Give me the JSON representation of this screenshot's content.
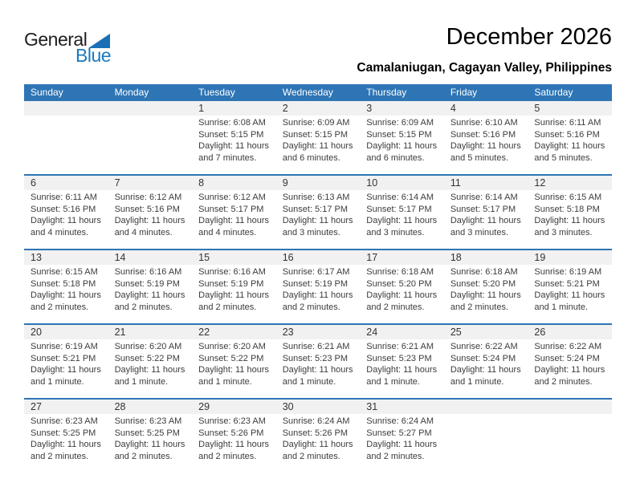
{
  "logo": {
    "word_top": "General",
    "word_bottom": "Blue"
  },
  "title": "December 2026",
  "location": "Camalaniugan, Cagayan Valley, Philippines",
  "colors": {
    "header_bg": "#2e75b5",
    "week_divider": "#2e75b5",
    "number_strip_bg": "#f1f1f1",
    "logo_blue": "#1b79c0",
    "header_text": "#ffffff"
  },
  "calendar": {
    "weekdays": [
      "Sunday",
      "Monday",
      "Tuesday",
      "Wednesday",
      "Thursday",
      "Friday",
      "Saturday"
    ],
    "field_labels": {
      "sunrise": "Sunrise:",
      "sunset": "Sunset:",
      "daylight": "Daylight:"
    },
    "weeks": [
      [
        {
          "day": ""
        },
        {
          "day": ""
        },
        {
          "day": "1",
          "sunrise": "6:08 AM",
          "sunset": "5:15 PM",
          "daylight": "11 hours and 7 minutes."
        },
        {
          "day": "2",
          "sunrise": "6:09 AM",
          "sunset": "5:15 PM",
          "daylight": "11 hours and 6 minutes."
        },
        {
          "day": "3",
          "sunrise": "6:09 AM",
          "sunset": "5:15 PM",
          "daylight": "11 hours and 6 minutes."
        },
        {
          "day": "4",
          "sunrise": "6:10 AM",
          "sunset": "5:16 PM",
          "daylight": "11 hours and 5 minutes."
        },
        {
          "day": "5",
          "sunrise": "6:11 AM",
          "sunset": "5:16 PM",
          "daylight": "11 hours and 5 minutes."
        }
      ],
      [
        {
          "day": "6",
          "sunrise": "6:11 AM",
          "sunset": "5:16 PM",
          "daylight": "11 hours and 4 minutes."
        },
        {
          "day": "7",
          "sunrise": "6:12 AM",
          "sunset": "5:16 PM",
          "daylight": "11 hours and 4 minutes."
        },
        {
          "day": "8",
          "sunrise": "6:12 AM",
          "sunset": "5:17 PM",
          "daylight": "11 hours and 4 minutes."
        },
        {
          "day": "9",
          "sunrise": "6:13 AM",
          "sunset": "5:17 PM",
          "daylight": "11 hours and 3 minutes."
        },
        {
          "day": "10",
          "sunrise": "6:14 AM",
          "sunset": "5:17 PM",
          "daylight": "11 hours and 3 minutes."
        },
        {
          "day": "11",
          "sunrise": "6:14 AM",
          "sunset": "5:17 PM",
          "daylight": "11 hours and 3 minutes."
        },
        {
          "day": "12",
          "sunrise": "6:15 AM",
          "sunset": "5:18 PM",
          "daylight": "11 hours and 3 minutes."
        }
      ],
      [
        {
          "day": "13",
          "sunrise": "6:15 AM",
          "sunset": "5:18 PM",
          "daylight": "11 hours and 2 minutes."
        },
        {
          "day": "14",
          "sunrise": "6:16 AM",
          "sunset": "5:19 PM",
          "daylight": "11 hours and 2 minutes."
        },
        {
          "day": "15",
          "sunrise": "6:16 AM",
          "sunset": "5:19 PM",
          "daylight": "11 hours and 2 minutes."
        },
        {
          "day": "16",
          "sunrise": "6:17 AM",
          "sunset": "5:19 PM",
          "daylight": "11 hours and 2 minutes."
        },
        {
          "day": "17",
          "sunrise": "6:18 AM",
          "sunset": "5:20 PM",
          "daylight": "11 hours and 2 minutes."
        },
        {
          "day": "18",
          "sunrise": "6:18 AM",
          "sunset": "5:20 PM",
          "daylight": "11 hours and 2 minutes."
        },
        {
          "day": "19",
          "sunrise": "6:19 AM",
          "sunset": "5:21 PM",
          "daylight": "11 hours and 1 minute."
        }
      ],
      [
        {
          "day": "20",
          "sunrise": "6:19 AM",
          "sunset": "5:21 PM",
          "daylight": "11 hours and 1 minute."
        },
        {
          "day": "21",
          "sunrise": "6:20 AM",
          "sunset": "5:22 PM",
          "daylight": "11 hours and 1 minute."
        },
        {
          "day": "22",
          "sunrise": "6:20 AM",
          "sunset": "5:22 PM",
          "daylight": "11 hours and 1 minute."
        },
        {
          "day": "23",
          "sunrise": "6:21 AM",
          "sunset": "5:23 PM",
          "daylight": "11 hours and 1 minute."
        },
        {
          "day": "24",
          "sunrise": "6:21 AM",
          "sunset": "5:23 PM",
          "daylight": "11 hours and 1 minute."
        },
        {
          "day": "25",
          "sunrise": "6:22 AM",
          "sunset": "5:24 PM",
          "daylight": "11 hours and 1 minute."
        },
        {
          "day": "26",
          "sunrise": "6:22 AM",
          "sunset": "5:24 PM",
          "daylight": "11 hours and 2 minutes."
        }
      ],
      [
        {
          "day": "27",
          "sunrise": "6:23 AM",
          "sunset": "5:25 PM",
          "daylight": "11 hours and 2 minutes."
        },
        {
          "day": "28",
          "sunrise": "6:23 AM",
          "sunset": "5:25 PM",
          "daylight": "11 hours and 2 minutes."
        },
        {
          "day": "29",
          "sunrise": "6:23 AM",
          "sunset": "5:26 PM",
          "daylight": "11 hours and 2 minutes."
        },
        {
          "day": "30",
          "sunrise": "6:24 AM",
          "sunset": "5:26 PM",
          "daylight": "11 hours and 2 minutes."
        },
        {
          "day": "31",
          "sunrise": "6:24 AM",
          "sunset": "5:27 PM",
          "daylight": "11 hours and 2 minutes."
        },
        {
          "day": ""
        },
        {
          "day": ""
        }
      ]
    ]
  }
}
